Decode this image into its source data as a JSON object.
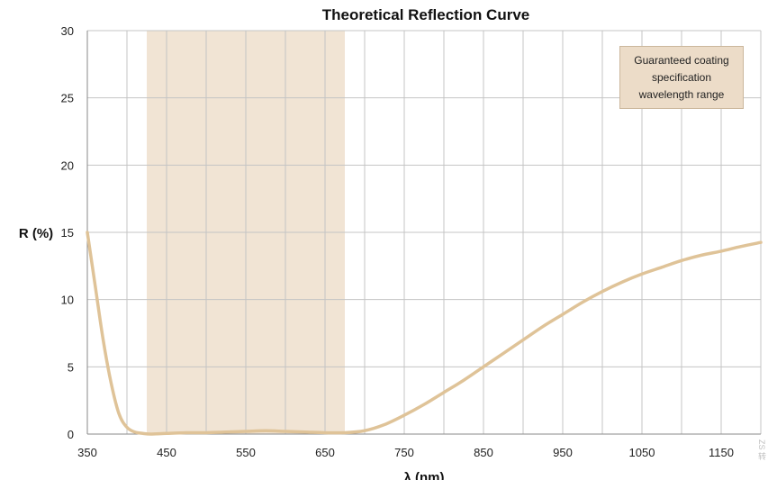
{
  "chart_data": {
    "type": "line",
    "title": "Theoretical Reflection Curve",
    "xlabel": "λ (nm)",
    "ylabel": "R (%)",
    "xlim": [
      350,
      1200
    ],
    "ylim": [
      0,
      30
    ],
    "x_ticks": [
      350,
      450,
      550,
      650,
      750,
      850,
      950,
      1050,
      1150
    ],
    "y_ticks": [
      0,
      5,
      10,
      15,
      20,
      25,
      30
    ],
    "grid": true,
    "shaded_band": {
      "x": [
        425,
        675
      ],
      "label": "Guaranteed coating specification wavelength range",
      "color": "#f1e4d4"
    },
    "line_color": "#dfc398",
    "series": [
      {
        "x": [
          350,
          360,
          370,
          380,
          390,
          400,
          410,
          420,
          430,
          450,
          475,
          500,
          525,
          550,
          575,
          600,
          625,
          650,
          675,
          700,
          725,
          750,
          775,
          800,
          825,
          850,
          875,
          900,
          925,
          950,
          975,
          1000,
          1025,
          1050,
          1075,
          1100,
          1125,
          1150,
          1175,
          1200
        ],
        "values": [
          15.0,
          11.0,
          7.0,
          3.8,
          1.5,
          0.5,
          0.15,
          0.05,
          0.0,
          0.05,
          0.1,
          0.1,
          0.15,
          0.2,
          0.25,
          0.2,
          0.15,
          0.1,
          0.1,
          0.25,
          0.7,
          1.4,
          2.2,
          3.1,
          4.0,
          5.0,
          6.0,
          7.0,
          8.0,
          8.9,
          9.8,
          10.6,
          11.3,
          11.9,
          12.4,
          12.9,
          13.3,
          13.6,
          13.95,
          14.25
        ]
      }
    ]
  },
  "watermark": "ZS 转"
}
